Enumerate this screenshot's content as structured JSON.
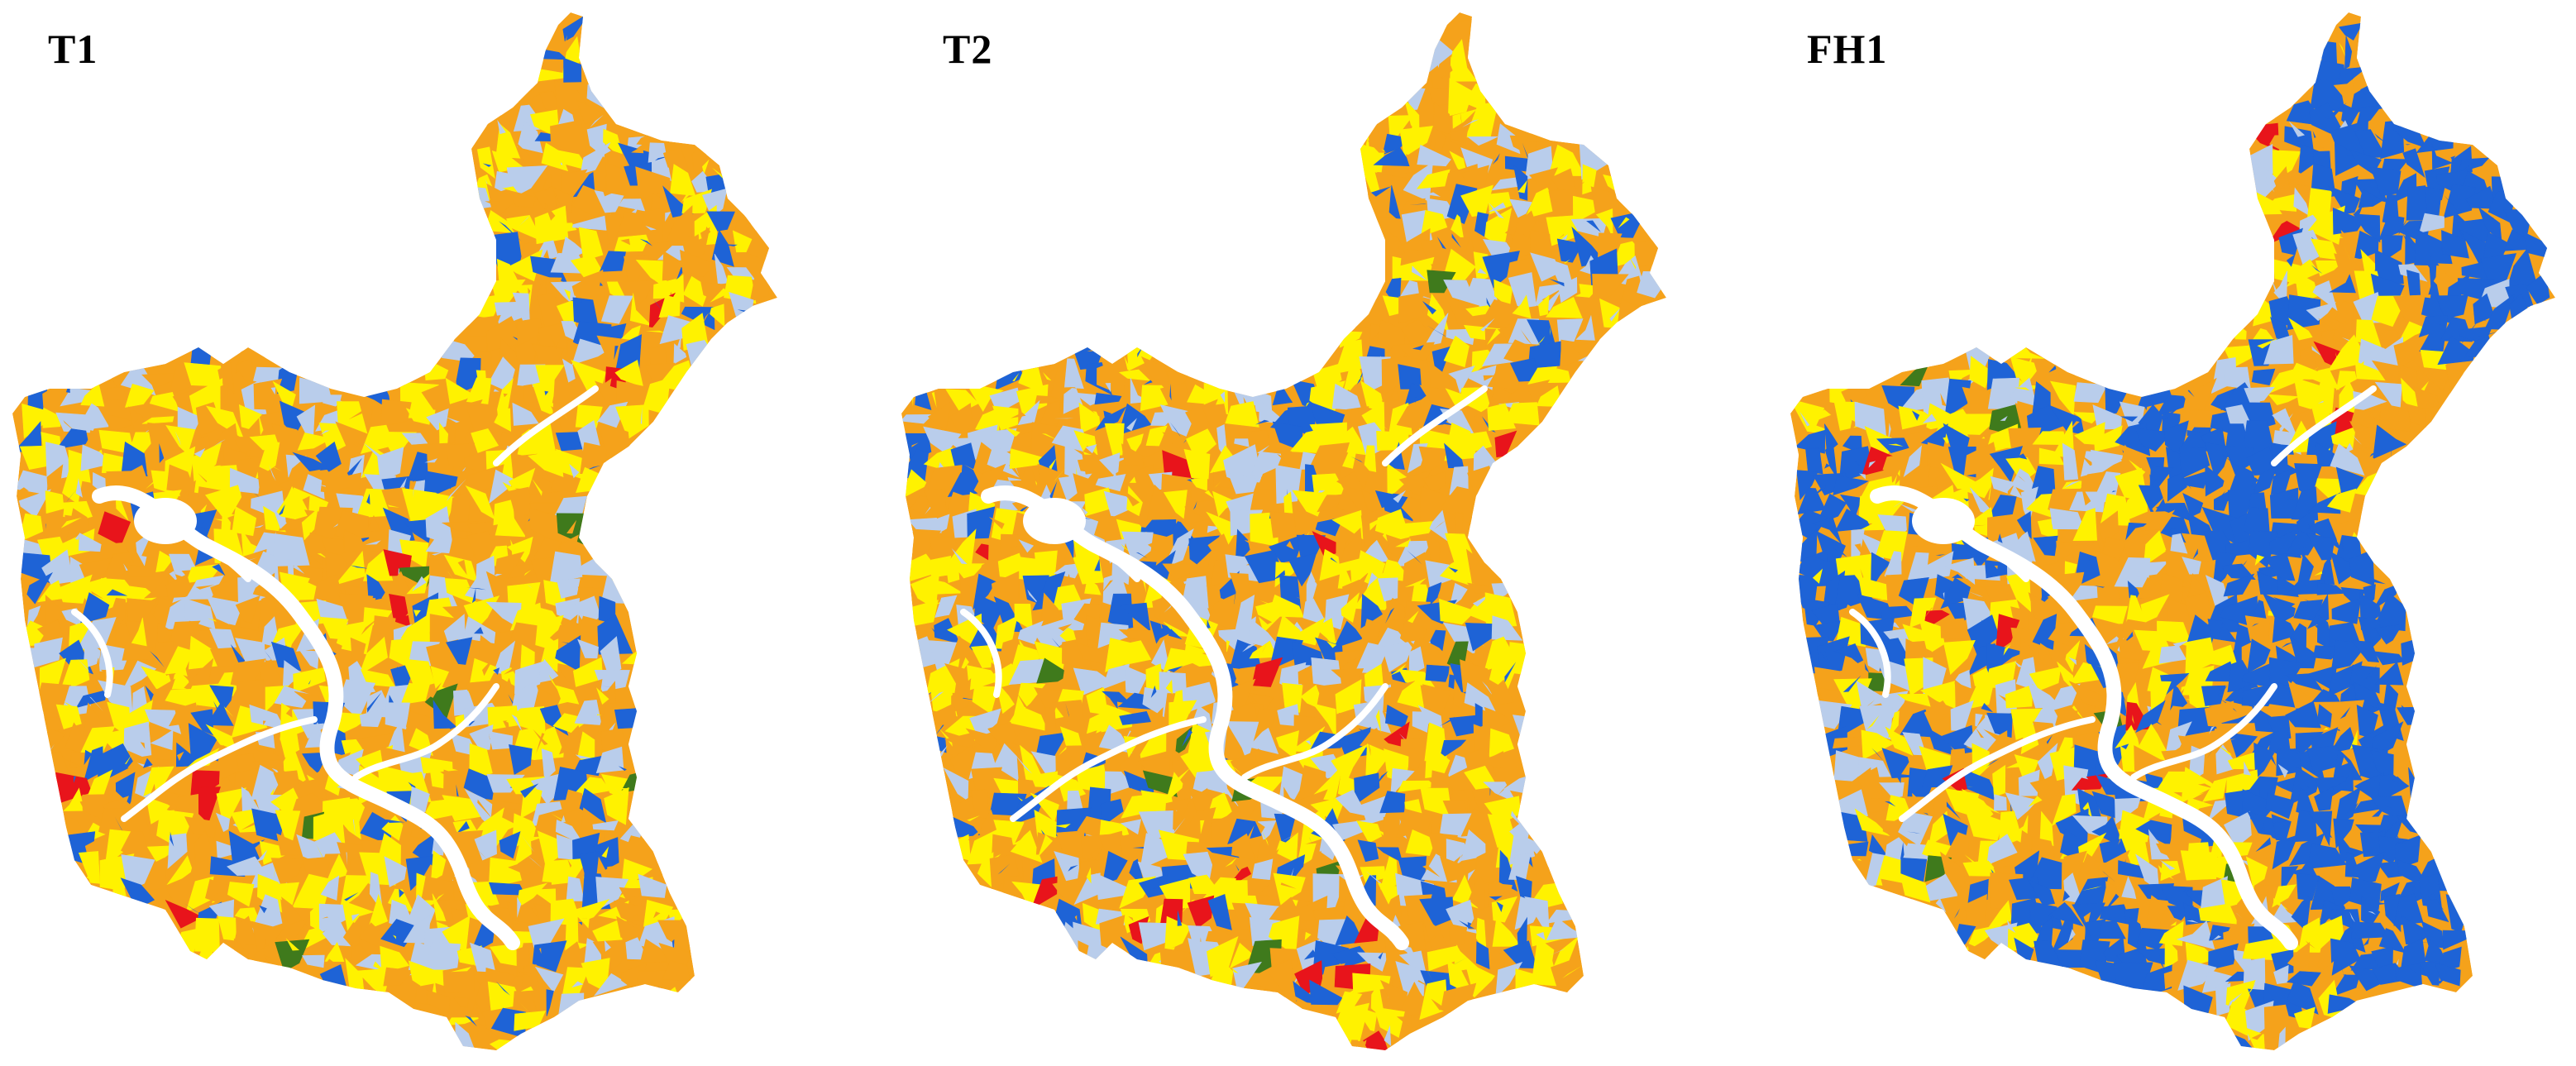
{
  "figure": {
    "panels": [
      {
        "id": "t1",
        "label": "T1",
        "blue_share": 0.22
      },
      {
        "id": "t2",
        "label": "T2",
        "blue_share": 0.24
      },
      {
        "id": "fh1",
        "label": "FH1",
        "blue_share": 0.55
      }
    ]
  },
  "palette": {
    "orange": "#F5A21B",
    "yellow": "#FFF200",
    "light_blue": "#B9CDEB",
    "blue": "#1E63D6",
    "red": "#E8141B",
    "green": "#3F7A1C",
    "river": "#FFFFFF"
  }
}
